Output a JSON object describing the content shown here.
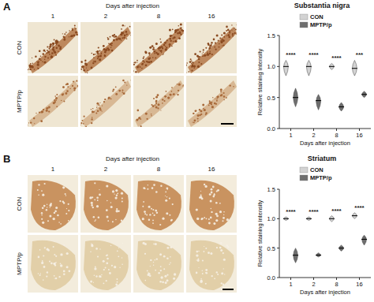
{
  "figure": {
    "panels": [
      {
        "label": "A",
        "header": "Days after injection",
        "days": [
          "1",
          "2",
          "8",
          "16"
        ],
        "rows": [
          "CON",
          "MPTP/p"
        ]
      },
      {
        "label": "B",
        "header": "Days after injection",
        "days": [
          "1",
          "2",
          "8",
          "16"
        ],
        "rows": [
          "CON",
          "MPTP/p"
        ]
      }
    ]
  },
  "chart_data": [
    {
      "type": "violin",
      "title": "Substantia nigra",
      "x_label": "Days after injection",
      "y_label": "Relative staining intensity",
      "categories": [
        "1",
        "2",
        "8",
        "16"
      ],
      "series": [
        {
          "name": "CON",
          "color": "#d3d3d3",
          "values": [
            1.0,
            1.0,
            1.0,
            0.97
          ],
          "min": [
            0.85,
            0.85,
            0.95,
            0.85
          ],
          "max": [
            1.1,
            1.1,
            1.05,
            1.1
          ]
        },
        {
          "name": "MPTP/p",
          "color": "#6e6e6e",
          "values": [
            0.5,
            0.45,
            0.35,
            0.55
          ],
          "min": [
            0.35,
            0.3,
            0.28,
            0.5
          ],
          "max": [
            0.65,
            0.55,
            0.42,
            0.6
          ]
        }
      ],
      "significance": [
        "****",
        "****",
        "****",
        "***"
      ],
      "ylim": [
        0,
        1.5
      ],
      "yticks": [
        {
          "value": 0,
          "label": "0.0"
        },
        0.5,
        {
          "value": 1,
          "label": "1.0"
        },
        1.5
      ],
      "grid": false,
      "legend": "top"
    },
    {
      "type": "violin",
      "title": "Striatum",
      "x_label": "Days after injection",
      "y_label": "Relative staining intensity",
      "categories": [
        "1",
        "2",
        "8",
        "16"
      ],
      "series": [
        {
          "name": "CON",
          "color": "#d3d3d3",
          "values": [
            1.0,
            1.0,
            1.0,
            1.05
          ],
          "min": [
            0.97,
            0.97,
            0.95,
            1.0
          ],
          "max": [
            1.03,
            1.03,
            1.05,
            1.1
          ]
        },
        {
          "name": "MPTP/p",
          "color": "#6e6e6e",
          "values": [
            0.38,
            0.38,
            0.5,
            0.65
          ],
          "min": [
            0.25,
            0.35,
            0.45,
            0.55
          ],
          "max": [
            0.5,
            0.42,
            0.55,
            0.72
          ]
        }
      ],
      "significance": [
        "****",
        "****",
        "****",
        "****"
      ],
      "ylim": [
        0,
        1.5
      ],
      "yticks": [
        {
          "value": 0,
          "label": "0.0"
        },
        0.5,
        {
          "value": 1,
          "label": "1.0"
        },
        1.5
      ],
      "grid": false,
      "legend": "top"
    }
  ]
}
